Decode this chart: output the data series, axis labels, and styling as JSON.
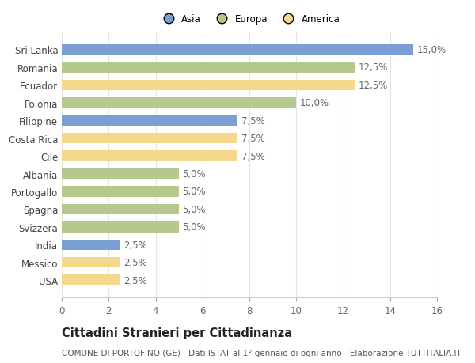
{
  "categories": [
    "Sri Lanka",
    "Romania",
    "Ecuador",
    "Polonia",
    "Filippine",
    "Costa Rica",
    "Cile",
    "Albania",
    "Portogallo",
    "Spagna",
    "Svizzera",
    "India",
    "Messico",
    "USA"
  ],
  "values": [
    15.0,
    12.5,
    12.5,
    10.0,
    7.5,
    7.5,
    7.5,
    5.0,
    5.0,
    5.0,
    5.0,
    2.5,
    2.5,
    2.5
  ],
  "continents": [
    "Asia",
    "Europa",
    "America",
    "Europa",
    "Asia",
    "America",
    "America",
    "Europa",
    "Europa",
    "Europa",
    "Europa",
    "Asia",
    "America",
    "America"
  ],
  "colors": {
    "Asia": "#7b9fd4",
    "Europa": "#b5c98e",
    "America": "#f5d78e"
  },
  "legend_labels": [
    "Asia",
    "Europa",
    "America"
  ],
  "legend_colors": [
    "#7b9fd4",
    "#b5c98e",
    "#f5d78e"
  ],
  "xlim": [
    0,
    16
  ],
  "xticks": [
    0,
    2,
    4,
    6,
    8,
    10,
    12,
    14,
    16
  ],
  "title": "Cittadini Stranieri per Cittadinanza",
  "subtitle": "COMUNE DI PORTOFINO (GE) - Dati ISTAT al 1° gennaio di ogni anno - Elaborazione TUTTITALIA.IT",
  "bar_height": 0.6,
  "background_color": "#ffffff",
  "grid_color": "#e5e5e5",
  "label_fontsize": 8.5,
  "title_fontsize": 10.5,
  "subtitle_fontsize": 7.5,
  "tick_fontsize": 8.5
}
